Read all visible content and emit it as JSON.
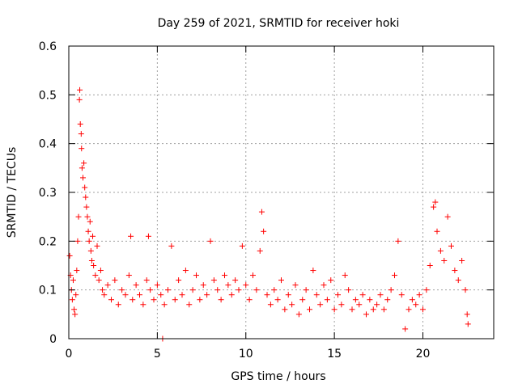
{
  "chart_data": {
    "type": "scatter",
    "title": "Day 259 of 2021, SRMTID for receiver hoki",
    "xlabel": "GPS time / hours",
    "ylabel": "SRMTID / TECUs",
    "xlim": [
      0,
      24
    ],
    "ylim": [
      0,
      0.6
    ],
    "xticks": [
      0,
      5,
      10,
      15,
      20
    ],
    "xtick_labels": [
      "0",
      "5",
      "10",
      "15",
      "20"
    ],
    "yticks": [
      0,
      0.1,
      0.2,
      0.3,
      0.4,
      0.5,
      0.6
    ],
    "ytick_labels": [
      "0",
      "0.1",
      "0.2",
      "0.3",
      "0.4",
      "0.5",
      "0.6"
    ],
    "grid": true,
    "marker": "+",
    "color": "#ff0000",
    "series": [
      {
        "name": "SRMTID",
        "points": [
          [
            0.05,
            0.17
          ],
          [
            0.1,
            0.13
          ],
          [
            0.15,
            0.1
          ],
          [
            0.2,
            0.08
          ],
          [
            0.25,
            0.12
          ],
          [
            0.3,
            0.06
          ],
          [
            0.35,
            0.05
          ],
          [
            0.4,
            0.09
          ],
          [
            0.45,
            0.14
          ],
          [
            0.5,
            0.2
          ],
          [
            0.55,
            0.25
          ],
          [
            0.6,
            0.49
          ],
          [
            0.62,
            0.51
          ],
          [
            0.65,
            0.44
          ],
          [
            0.7,
            0.42
          ],
          [
            0.72,
            0.39
          ],
          [
            0.75,
            0.35
          ],
          [
            0.8,
            0.33
          ],
          [
            0.85,
            0.36
          ],
          [
            0.9,
            0.31
          ],
          [
            0.95,
            0.29
          ],
          [
            1.0,
            0.27
          ],
          [
            1.05,
            0.25
          ],
          [
            1.1,
            0.22
          ],
          [
            1.15,
            0.2
          ],
          [
            1.2,
            0.24
          ],
          [
            1.25,
            0.18
          ],
          [
            1.3,
            0.16
          ],
          [
            1.35,
            0.21
          ],
          [
            1.4,
            0.15
          ],
          [
            1.5,
            0.13
          ],
          [
            1.6,
            0.19
          ],
          [
            1.7,
            0.12
          ],
          [
            1.8,
            0.14
          ],
          [
            1.9,
            0.1
          ],
          [
            2.0,
            0.09
          ],
          [
            2.2,
            0.11
          ],
          [
            2.4,
            0.08
          ],
          [
            2.6,
            0.12
          ],
          [
            2.8,
            0.07
          ],
          [
            3.0,
            0.1
          ],
          [
            3.2,
            0.09
          ],
          [
            3.4,
            0.13
          ],
          [
            3.5,
            0.21
          ],
          [
            3.6,
            0.08
          ],
          [
            3.8,
            0.11
          ],
          [
            4.0,
            0.09
          ],
          [
            4.2,
            0.07
          ],
          [
            4.4,
            0.12
          ],
          [
            4.5,
            0.21
          ],
          [
            4.6,
            0.1
          ],
          [
            4.8,
            0.08
          ],
          [
            5.0,
            0.11
          ],
          [
            5.2,
            0.09
          ],
          [
            5.4,
            0.07
          ],
          [
            5.6,
            0.1
          ],
          [
            5.8,
            0.19
          ],
          [
            6.0,
            0.08
          ],
          [
            6.2,
            0.12
          ],
          [
            6.4,
            0.09
          ],
          [
            6.6,
            0.14
          ],
          [
            6.8,
            0.07
          ],
          [
            7.0,
            0.1
          ],
          [
            7.2,
            0.13
          ],
          [
            7.4,
            0.08
          ],
          [
            7.6,
            0.11
          ],
          [
            7.8,
            0.09
          ],
          [
            8.0,
            0.2
          ],
          [
            8.2,
            0.12
          ],
          [
            8.4,
            0.1
          ],
          [
            8.6,
            0.08
          ],
          [
            8.8,
            0.13
          ],
          [
            9.0,
            0.11
          ],
          [
            9.2,
            0.09
          ],
          [
            9.4,
            0.12
          ],
          [
            9.6,
            0.1
          ],
          [
            9.8,
            0.19
          ],
          [
            10.0,
            0.11
          ],
          [
            10.2,
            0.08
          ],
          [
            10.4,
            0.13
          ],
          [
            10.6,
            0.1
          ],
          [
            10.8,
            0.18
          ],
          [
            10.9,
            0.26
          ],
          [
            11.0,
            0.22
          ],
          [
            11.2,
            0.09
          ],
          [
            11.4,
            0.07
          ],
          [
            11.6,
            0.1
          ],
          [
            11.8,
            0.08
          ],
          [
            12.0,
            0.12
          ],
          [
            12.2,
            0.06
          ],
          [
            12.4,
            0.09
          ],
          [
            12.6,
            0.07
          ],
          [
            12.8,
            0.11
          ],
          [
            13.0,
            0.05
          ],
          [
            13.2,
            0.08
          ],
          [
            13.4,
            0.1
          ],
          [
            13.6,
            0.06
          ],
          [
            13.8,
            0.14
          ],
          [
            14.0,
            0.09
          ],
          [
            14.2,
            0.07
          ],
          [
            14.4,
            0.11
          ],
          [
            14.6,
            0.08
          ],
          [
            14.8,
            0.12
          ],
          [
            15.0,
            0.06
          ],
          [
            15.2,
            0.09
          ],
          [
            15.4,
            0.07
          ],
          [
            15.6,
            0.13
          ],
          [
            15.8,
            0.1
          ],
          [
            16.0,
            0.06
          ],
          [
            16.2,
            0.08
          ],
          [
            16.4,
            0.07
          ],
          [
            16.6,
            0.09
          ],
          [
            16.8,
            0.05
          ],
          [
            17.0,
            0.08
          ],
          [
            17.2,
            0.06
          ],
          [
            17.4,
            0.07
          ],
          [
            17.6,
            0.09
          ],
          [
            17.8,
            0.06
          ],
          [
            18.0,
            0.08
          ],
          [
            18.2,
            0.1
          ],
          [
            18.4,
            0.13
          ],
          [
            18.6,
            0.2
          ],
          [
            18.8,
            0.09
          ],
          [
            19.0,
            0.02
          ],
          [
            19.2,
            0.06
          ],
          [
            19.4,
            0.08
          ],
          [
            19.6,
            0.07
          ],
          [
            19.8,
            0.09
          ],
          [
            20.0,
            0.06
          ],
          [
            20.2,
            0.1
          ],
          [
            20.4,
            0.15
          ],
          [
            20.6,
            0.27
          ],
          [
            20.7,
            0.28
          ],
          [
            20.8,
            0.22
          ],
          [
            21.0,
            0.18
          ],
          [
            21.2,
            0.16
          ],
          [
            21.4,
            0.25
          ],
          [
            21.6,
            0.19
          ],
          [
            21.8,
            0.14
          ],
          [
            22.0,
            0.12
          ],
          [
            22.2,
            0.16
          ],
          [
            22.4,
            0.1
          ],
          [
            22.5,
            0.05
          ],
          [
            22.55,
            0.03
          ],
          [
            5.3,
            0.0
          ]
        ]
      }
    ]
  }
}
